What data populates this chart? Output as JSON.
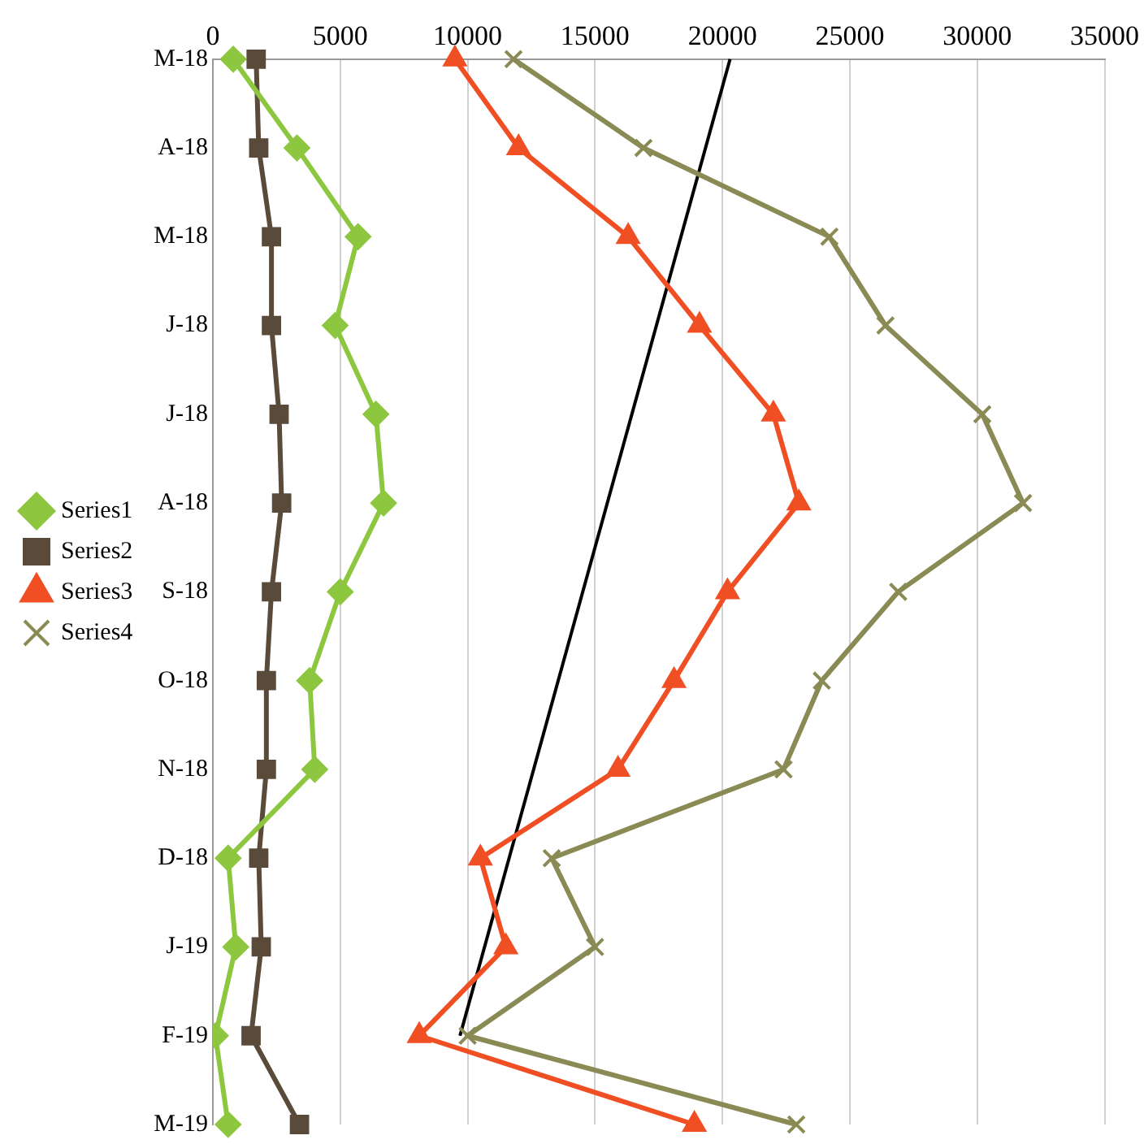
{
  "chart_data": {
    "type": "line",
    "orientation": "horizontal",
    "categories": [
      "M-18",
      "A-18",
      "M-18",
      "J-18",
      "J-18",
      "A-18",
      "S-18",
      "O-18",
      "N-18",
      "D-18",
      "J-19",
      "F-19",
      "M-19"
    ],
    "xlim": [
      0,
      35000
    ],
    "xticks": [
      0,
      5000,
      10000,
      15000,
      20000,
      25000,
      30000,
      35000
    ],
    "grid": "x",
    "legend": "left",
    "series": [
      {
        "name": "Series1",
        "color": "#8dc63f",
        "marker": "diamond",
        "values": [
          800,
          3300,
          5700,
          4800,
          6400,
          6700,
          5000,
          3800,
          4000,
          600,
          900,
          100,
          600
        ]
      },
      {
        "name": "Series2",
        "color": "#5a4a3a",
        "marker": "square",
        "values": [
          1700,
          1800,
          2300,
          2300,
          2600,
          2700,
          2300,
          2100,
          2100,
          1800,
          1900,
          1500,
          3400
        ]
      },
      {
        "name": "Series3",
        "color": "#f04e23",
        "marker": "triangle",
        "values": [
          9500,
          12000,
          16300,
          19100,
          22000,
          23000,
          20200,
          18100,
          15900,
          10500,
          11500,
          8100,
          18900
        ]
      },
      {
        "name": "Series4",
        "color": "#8a8a55",
        "marker": "cross",
        "values": [
          11800,
          16900,
          24200,
          26400,
          30200,
          31800,
          26900,
          23900,
          22400,
          13300,
          15000,
          10000,
          22900
        ]
      },
      {
        "type": "line",
        "color": "#000000",
        "marker": "none",
        "values": [
          20300,
          null,
          null,
          null,
          null,
          null,
          null,
          null,
          null,
          null,
          null,
          9700,
          null
        ]
      }
    ]
  }
}
